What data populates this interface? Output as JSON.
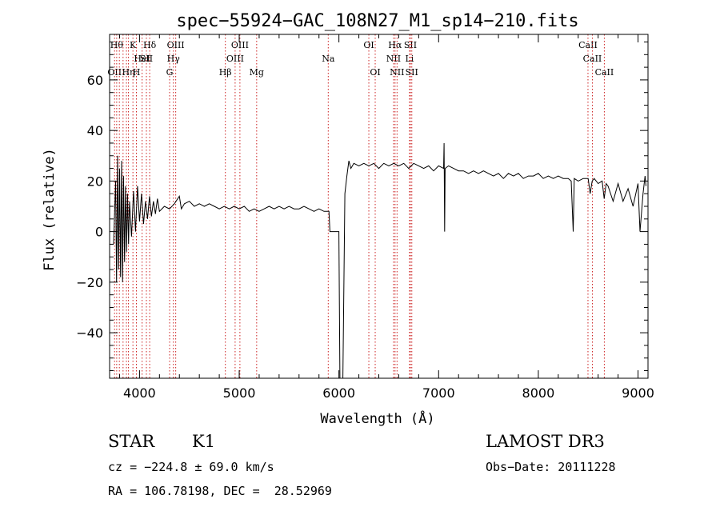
{
  "chart_data": {
    "type": "line",
    "title": "spec−55924−GAC_108N27_M1_sp14−210.fits",
    "xlabel": "Wavelength (Å)",
    "ylabel": "Flux (relative)",
    "xlim": [
      3700,
      9100
    ],
    "ylim": [
      -58,
      78
    ],
    "xticks": [
      "4000",
      "5000",
      "6000",
      "7000",
      "8000",
      "9000"
    ],
    "yticks": [
      "−40",
      "−20",
      "0",
      "20",
      "40",
      "60"
    ],
    "series": [
      {
        "points": [
          [
            3740,
            -5
          ],
          [
            3760,
            20
          ],
          [
            3770,
            -20
          ],
          [
            3780,
            30
          ],
          [
            3790,
            -15
          ],
          [
            3800,
            25
          ],
          [
            3810,
            -18
          ],
          [
            3820,
            28
          ],
          [
            3830,
            -20
          ],
          [
            3840,
            22
          ],
          [
            3850,
            -12
          ],
          [
            3860,
            18
          ],
          [
            3870,
            -8
          ],
          [
            3880,
            15
          ],
          [
            3890,
            -5
          ],
          [
            3900,
            12
          ],
          [
            3920,
            -2
          ],
          [
            3940,
            16
          ],
          [
            3960,
            0
          ],
          [
            3980,
            18
          ],
          [
            4000,
            4
          ],
          [
            4020,
            15
          ],
          [
            4040,
            3
          ],
          [
            4060,
            12
          ],
          [
            4080,
            5
          ],
          [
            4100,
            14
          ],
          [
            4120,
            6
          ],
          [
            4140,
            12
          ],
          [
            4160,
            7
          ],
          [
            4180,
            13
          ],
          [
            4200,
            8
          ],
          [
            4250,
            10
          ],
          [
            4300,
            9
          ],
          [
            4350,
            11
          ],
          [
            4400,
            14
          ],
          [
            4420,
            9
          ],
          [
            4450,
            11
          ],
          [
            4500,
            12
          ],
          [
            4550,
            10
          ],
          [
            4600,
            11
          ],
          [
            4650,
            10
          ],
          [
            4700,
            11
          ],
          [
            4750,
            10
          ],
          [
            4800,
            9
          ],
          [
            4850,
            10
          ],
          [
            4900,
            9
          ],
          [
            4950,
            10
          ],
          [
            5000,
            9
          ],
          [
            5050,
            10
          ],
          [
            5100,
            8
          ],
          [
            5150,
            9
          ],
          [
            5200,
            8
          ],
          [
            5250,
            9
          ],
          [
            5300,
            10
          ],
          [
            5350,
            9
          ],
          [
            5400,
            10
          ],
          [
            5450,
            9
          ],
          [
            5500,
            10
          ],
          [
            5550,
            9
          ],
          [
            5600,
            9
          ],
          [
            5650,
            10
          ],
          [
            5700,
            9
          ],
          [
            5750,
            8
          ],
          [
            5800,
            9
          ],
          [
            5850,
            8
          ],
          [
            5900,
            8
          ],
          [
            5910,
            0
          ],
          [
            6000,
            0
          ],
          [
            6010,
            -58
          ],
          [
            6040,
            -58
          ],
          [
            6060,
            15
          ],
          [
            6080,
            22
          ],
          [
            6100,
            28
          ],
          [
            6120,
            25
          ],
          [
            6150,
            27
          ],
          [
            6200,
            26
          ],
          [
            6250,
            27
          ],
          [
            6300,
            26
          ],
          [
            6350,
            27
          ],
          [
            6400,
            25
          ],
          [
            6450,
            27
          ],
          [
            6500,
            26
          ],
          [
            6550,
            27
          ],
          [
            6600,
            26
          ],
          [
            6650,
            27
          ],
          [
            6700,
            25
          ],
          [
            6750,
            27
          ],
          [
            6800,
            26
          ],
          [
            6850,
            25
          ],
          [
            6900,
            26
          ],
          [
            6950,
            24
          ],
          [
            7000,
            26
          ],
          [
            7050,
            25
          ],
          [
            7055,
            35
          ],
          [
            7060,
            0
          ],
          [
            7065,
            25
          ],
          [
            7100,
            26
          ],
          [
            7150,
            25
          ],
          [
            7200,
            24
          ],
          [
            7250,
            24
          ],
          [
            7300,
            23
          ],
          [
            7350,
            24
          ],
          [
            7400,
            23
          ],
          [
            7450,
            24
          ],
          [
            7500,
            23
          ],
          [
            7550,
            22
          ],
          [
            7600,
            23
          ],
          [
            7650,
            21
          ],
          [
            7700,
            23
          ],
          [
            7750,
            22
          ],
          [
            7800,
            23
          ],
          [
            7850,
            21
          ],
          [
            7900,
            22
          ],
          [
            7950,
            22
          ],
          [
            8000,
            23
          ],
          [
            8050,
            21
          ],
          [
            8100,
            22
          ],
          [
            8150,
            21
          ],
          [
            8200,
            22
          ],
          [
            8250,
            21
          ],
          [
            8300,
            21
          ],
          [
            8330,
            20
          ],
          [
            8350,
            0
          ],
          [
            8360,
            21
          ],
          [
            8400,
            20
          ],
          [
            8450,
            21
          ],
          [
            8500,
            21
          ],
          [
            8520,
            15
          ],
          [
            8540,
            20
          ],
          [
            8560,
            21
          ],
          [
            8600,
            19
          ],
          [
            8640,
            20
          ],
          [
            8660,
            13
          ],
          [
            8680,
            19
          ],
          [
            8700,
            18
          ],
          [
            8750,
            12
          ],
          [
            8800,
            19
          ],
          [
            8850,
            12
          ],
          [
            8900,
            17
          ],
          [
            8950,
            10
          ],
          [
            9000,
            19
          ],
          [
            9020,
            0
          ],
          [
            9050,
            15
          ],
          [
            9070,
            22
          ],
          [
            9080,
            18
          ]
        ]
      }
    ],
    "line_markers": [
      {
        "x": 3750,
        "label": "OII",
        "row": 3
      },
      {
        "x": 3771,
        "label": "Hθ",
        "row": 1
      },
      {
        "x": 3798,
        "label": "",
        "row": 0
      },
      {
        "x": 3835,
        "label": "",
        "row": 0
      },
      {
        "x": 3869,
        "label": "",
        "row": 0
      },
      {
        "x": 3889,
        "label": "Hη",
        "row": 3
      },
      {
        "x": 3934,
        "label": "K",
        "row": 1
      },
      {
        "x": 3969,
        "label": "H",
        "row": 3
      },
      {
        "x": 4026,
        "label": "HeI",
        "row": 2
      },
      {
        "x": 4102,
        "label": "Hδ",
        "row": 1
      },
      {
        "x": 4069,
        "label": "SII",
        "row": 2
      },
      {
        "x": 4302,
        "label": "G",
        "row": 3
      },
      {
        "x": 4340,
        "label": "Hγ",
        "row": 2
      },
      {
        "x": 4363,
        "label": "OIII",
        "row": 1
      },
      {
        "x": 4861,
        "label": "Hβ",
        "row": 3
      },
      {
        "x": 4959,
        "label": "OIII",
        "row": 2
      },
      {
        "x": 5007,
        "label": "OIII",
        "row": 1
      },
      {
        "x": 5175,
        "label": "Mg",
        "row": 3
      },
      {
        "x": 5893,
        "label": "Na",
        "row": 2
      },
      {
        "x": 6300,
        "label": "OI",
        "row": 1
      },
      {
        "x": 6364,
        "label": "OI",
        "row": 3
      },
      {
        "x": 6548,
        "label": "NII",
        "row": 2
      },
      {
        "x": 6563,
        "label": "Hα",
        "row": 1
      },
      {
        "x": 6583,
        "label": "NII",
        "row": 3
      },
      {
        "x": 6708,
        "label": "Li",
        "row": 2
      },
      {
        "x": 6717,
        "label": "SII",
        "row": 1
      },
      {
        "x": 6731,
        "label": "SII",
        "row": 3
      },
      {
        "x": 8498,
        "label": "CaII",
        "row": 1
      },
      {
        "x": 8542,
        "label": "CaII",
        "row": 2
      },
      {
        "x": 8662,
        "label": "CaII",
        "row": 3
      }
    ]
  },
  "info": {
    "class": "STAR",
    "subclass": "K1",
    "survey": "LAMOST DR3",
    "cz": "cz = −224.8 ± 69.0 km/s",
    "obs_date": "Obs−Date: 20111228",
    "radec": "RA = 106.78198, DEC =  28.52969"
  },
  "colors": {
    "spectrum": "#000000",
    "marker": "#cc2222",
    "axes": "#000000"
  }
}
